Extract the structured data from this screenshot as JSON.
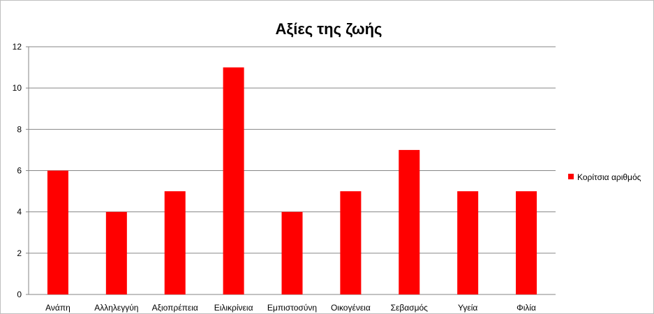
{
  "chart_data": {
    "type": "bar",
    "title": "Αξίες της ζωής",
    "categories": [
      "Ανάπη",
      "Αλληλεγγύη",
      "Αξιοπρέπεια",
      "Ειλικρίνεια",
      "Εμπιστοσύνη",
      "Οικογένεια",
      "Σεβασμός",
      "Υγεία",
      "Φιλία"
    ],
    "series": [
      {
        "name": "Κορίτσια αριθμός",
        "values": [
          6,
          4,
          5,
          11,
          4,
          5,
          7,
          5,
          5
        ],
        "color": "#ff0000"
      }
    ],
    "ylim": [
      0,
      12
    ],
    "yticks": [
      0,
      2,
      4,
      6,
      8,
      10,
      12
    ],
    "grid": true,
    "legend_position": "right"
  }
}
